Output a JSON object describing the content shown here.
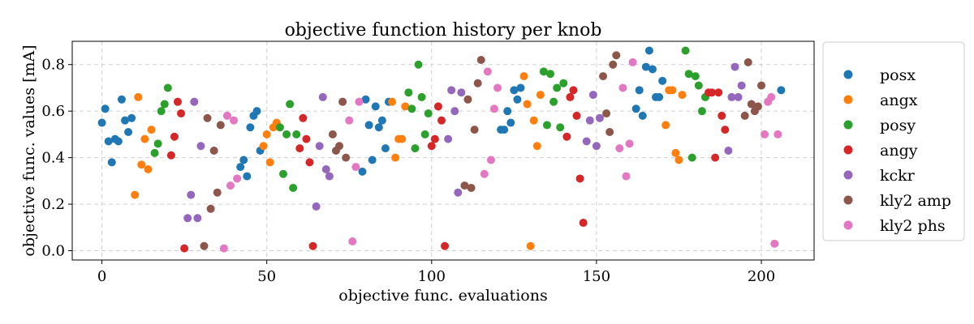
{
  "chart_data": {
    "type": "scatter",
    "title": "objective function history per knob",
    "xlabel": "objective func. evaluations",
    "ylabel": "objective func. values [mA]",
    "xlim": [
      -9,
      216
    ],
    "ylim": [
      -0.04,
      0.9
    ],
    "xticks": [
      0,
      50,
      100,
      150,
      200
    ],
    "yticks": [
      0.0,
      0.2,
      0.4,
      0.6,
      0.8
    ],
    "grid": true,
    "legend_position": "right-outside",
    "series": [
      {
        "name": "posx",
        "color": "#1f77b4",
        "points": [
          [
            0,
            0.55
          ],
          [
            1,
            0.61
          ],
          [
            2,
            0.47
          ],
          [
            3,
            0.38
          ],
          [
            4,
            0.48
          ],
          [
            5,
            0.47
          ],
          [
            6,
            0.65
          ],
          [
            7,
            0.56
          ],
          [
            8,
            0.51
          ],
          [
            9,
            0.57
          ],
          [
            42,
            0.36
          ],
          [
            43,
            0.39
          ],
          [
            44,
            0.32
          ],
          [
            45,
            0.53
          ],
          [
            46,
            0.58
          ],
          [
            47,
            0.6
          ],
          [
            48,
            0.43
          ],
          [
            79,
            0.34
          ],
          [
            80,
            0.65
          ],
          [
            81,
            0.54
          ],
          [
            82,
            0.39
          ],
          [
            83,
            0.62
          ],
          [
            84,
            0.53
          ],
          [
            85,
            0.56
          ],
          [
            86,
            0.44
          ],
          [
            87,
            0.64
          ],
          [
            121,
            0.52
          ],
          [
            122,
            0.52
          ],
          [
            123,
            0.6
          ],
          [
            124,
            0.55
          ],
          [
            125,
            0.69
          ],
          [
            126,
            0.65
          ],
          [
            127,
            0.7
          ],
          [
            162,
            0.61
          ],
          [
            163,
            0.69
          ],
          [
            164,
            0.58
          ],
          [
            165,
            0.79
          ],
          [
            166,
            0.86
          ],
          [
            167,
            0.78
          ],
          [
            168,
            0.66
          ],
          [
            169,
            0.66
          ],
          [
            170,
            0.73
          ],
          [
            206,
            0.69
          ]
        ]
      },
      {
        "name": "angx",
        "color": "#ff7f0e",
        "points": [
          [
            10,
            0.24
          ],
          [
            11,
            0.66
          ],
          [
            12,
            0.37
          ],
          [
            13,
            0.48
          ],
          [
            14,
            0.35
          ],
          [
            15,
            0.52
          ],
          [
            49,
            0.45
          ],
          [
            50,
            0.5
          ],
          [
            51,
            0.38
          ],
          [
            52,
            0.53
          ],
          [
            53,
            0.55
          ],
          [
            88,
            0.64
          ],
          [
            89,
            0.4
          ],
          [
            90,
            0.48
          ],
          [
            91,
            0.48
          ],
          [
            92,
            0.62
          ],
          [
            128,
            0.75
          ],
          [
            129,
            0.63
          ],
          [
            130,
            0.02
          ],
          [
            131,
            0.56
          ],
          [
            132,
            0.45
          ],
          [
            133,
            0.67
          ],
          [
            171,
            0.54
          ],
          [
            172,
            0.69
          ],
          [
            173,
            0.69
          ],
          [
            174,
            0.42
          ],
          [
            175,
            0.39
          ],
          [
            176,
            0.67
          ]
        ]
      },
      {
        "name": "posy",
        "color": "#2ca02c",
        "points": [
          [
            16,
            0.42
          ],
          [
            17,
            0.46
          ],
          [
            18,
            0.6
          ],
          [
            19,
            0.63
          ],
          [
            20,
            0.7
          ],
          [
            54,
            0.53
          ],
          [
            55,
            0.33
          ],
          [
            56,
            0.5
          ],
          [
            57,
            0.63
          ],
          [
            58,
            0.27
          ],
          [
            59,
            0.5
          ],
          [
            93,
            0.68
          ],
          [
            94,
            0.61
          ],
          [
            95,
            0.44
          ],
          [
            96,
            0.8
          ],
          [
            97,
            0.66
          ],
          [
            98,
            0.5
          ],
          [
            99,
            0.59
          ],
          [
            134,
            0.77
          ],
          [
            135,
            0.54
          ],
          [
            136,
            0.76
          ],
          [
            137,
            0.64
          ],
          [
            138,
            0.7
          ],
          [
            139,
            0.53
          ],
          [
            140,
            0.72
          ],
          [
            177,
            0.86
          ],
          [
            178,
            0.76
          ],
          [
            179,
            0.4
          ],
          [
            180,
            0.75
          ],
          [
            181,
            0.71
          ],
          [
            182,
            0.6
          ],
          [
            183,
            0.66
          ]
        ]
      },
      {
        "name": "angy",
        "color": "#d62728",
        "points": [
          [
            21,
            0.41
          ],
          [
            22,
            0.49
          ],
          [
            23,
            0.64
          ],
          [
            24,
            0.59
          ],
          [
            25,
            0.01
          ],
          [
            60,
            0.44
          ],
          [
            61,
            0.57
          ],
          [
            62,
            0.48
          ],
          [
            63,
            0.38
          ],
          [
            64,
            0.02
          ],
          [
            100,
            0.45
          ],
          [
            101,
            0.48
          ],
          [
            102,
            0.62
          ],
          [
            103,
            0.56
          ],
          [
            104,
            0.02
          ],
          [
            141,
            0.49
          ],
          [
            142,
            0.66
          ],
          [
            143,
            0.69
          ],
          [
            144,
            0.58
          ],
          [
            145,
            0.31
          ],
          [
            146,
            0.12
          ],
          [
            184,
            0.68
          ],
          [
            185,
            0.68
          ],
          [
            186,
            0.4
          ],
          [
            187,
            0.68
          ],
          [
            188,
            0.58
          ],
          [
            189,
            0.52
          ]
        ]
      },
      {
        "name": "kckr",
        "color": "#9467bd",
        "points": [
          [
            26,
            0.14
          ],
          [
            27,
            0.24
          ],
          [
            28,
            0.64
          ],
          [
            29,
            0.14
          ],
          [
            30,
            0.45
          ],
          [
            65,
            0.19
          ],
          [
            66,
            0.45
          ],
          [
            67,
            0.66
          ],
          [
            68,
            0.35
          ],
          [
            69,
            0.32
          ],
          [
            105,
            0.48
          ],
          [
            106,
            0.69
          ],
          [
            107,
            0.6
          ],
          [
            108,
            0.25
          ],
          [
            109,
            0.68
          ],
          [
            147,
            0.47
          ],
          [
            148,
            0.56
          ],
          [
            149,
            0.67
          ],
          [
            150,
            0.45
          ],
          [
            151,
            0.57
          ],
          [
            190,
            0.43
          ],
          [
            191,
            0.66
          ],
          [
            192,
            0.79
          ],
          [
            193,
            0.66
          ],
          [
            194,
            0.71
          ]
        ]
      },
      {
        "name": "kly2 amp",
        "color": "#8c564b",
        "points": [
          [
            31,
            0.02
          ],
          [
            32,
            0.57
          ],
          [
            33,
            0.18
          ],
          [
            34,
            0.43
          ],
          [
            35,
            0.25
          ],
          [
            36,
            0.54
          ],
          [
            70,
            0.5
          ],
          [
            71,
            0.43
          ],
          [
            72,
            0.45
          ],
          [
            73,
            0.64
          ],
          [
            74,
            0.4
          ],
          [
            110,
            0.28
          ],
          [
            111,
            0.65
          ],
          [
            112,
            0.27
          ],
          [
            113,
            0.52
          ],
          [
            114,
            0.72
          ],
          [
            115,
            0.82
          ],
          [
            152,
            0.75
          ],
          [
            153,
            0.59
          ],
          [
            154,
            0.51
          ],
          [
            155,
            0.8
          ],
          [
            156,
            0.84
          ],
          [
            195,
            0.58
          ],
          [
            196,
            0.81
          ],
          [
            197,
            0.63
          ],
          [
            198,
            0.6
          ],
          [
            199,
            0.62
          ],
          [
            200,
            0.71
          ]
        ]
      },
      {
        "name": "kly2 phs",
        "color": "#e377c2",
        "points": [
          [
            37,
            0.01
          ],
          [
            38,
            0.58
          ],
          [
            39,
            0.28
          ],
          [
            40,
            0.56
          ],
          [
            41,
            0.31
          ],
          [
            75,
            0.56
          ],
          [
            76,
            0.04
          ],
          [
            77,
            0.36
          ],
          [
            78,
            0.64
          ],
          [
            116,
            0.33
          ],
          [
            117,
            0.77
          ],
          [
            118,
            0.39
          ],
          [
            119,
            0.61
          ],
          [
            120,
            0.7
          ],
          [
            157,
            0.44
          ],
          [
            158,
            0.7
          ],
          [
            159,
            0.32
          ],
          [
            160,
            0.46
          ],
          [
            161,
            0.81
          ],
          [
            201,
            0.5
          ],
          [
            202,
            0.64
          ],
          [
            203,
            0.66
          ],
          [
            204,
            0.03
          ],
          [
            205,
            0.5
          ]
        ]
      }
    ]
  }
}
